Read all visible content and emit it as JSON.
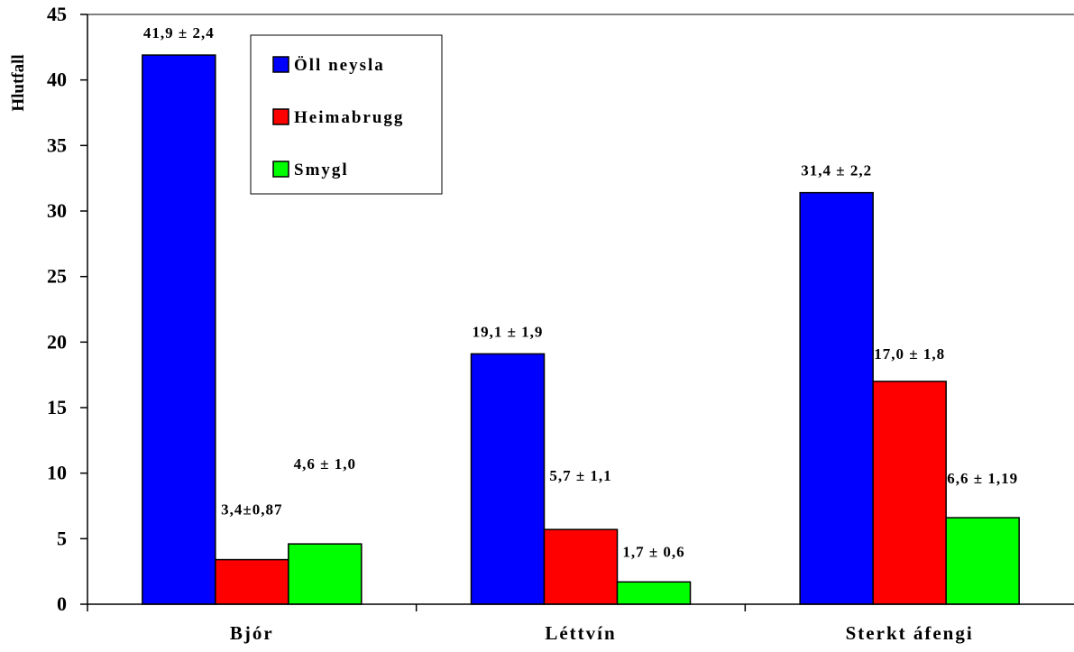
{
  "chart_data": {
    "type": "bar",
    "title": "",
    "xlabel": "",
    "ylabel": "Hlutfall",
    "ylim": [
      0,
      45
    ],
    "yticks": [
      0,
      5,
      10,
      15,
      20,
      25,
      30,
      35,
      40,
      45
    ],
    "categories": [
      "Bjór",
      "Léttvín",
      "Sterkt áfengi"
    ],
    "series": [
      {
        "name": "Öll neysla",
        "color": "#0000ff",
        "values": [
          41.9,
          19.1,
          31.4
        ],
        "labels": [
          "41,9 ± 2,4",
          "19,1 ± 1,9",
          "31,4 ± 2,2"
        ]
      },
      {
        "name": "Heimabrugg",
        "color": "#ff0000",
        "values": [
          3.4,
          5.7,
          17.0
        ],
        "labels": [
          "3,4±0,87",
          "5,7 ± 1,1",
          "17,0 ± 1,8"
        ]
      },
      {
        "name": "Smygl",
        "color": "#00ff00",
        "values": [
          4.6,
          1.7,
          6.6
        ],
        "labels": [
          "4,6 ± 1,0",
          "1,7 ± 0,6",
          "6,6 ± 1,19"
        ]
      }
    ],
    "legend_position": "top-left",
    "grid": false
  }
}
